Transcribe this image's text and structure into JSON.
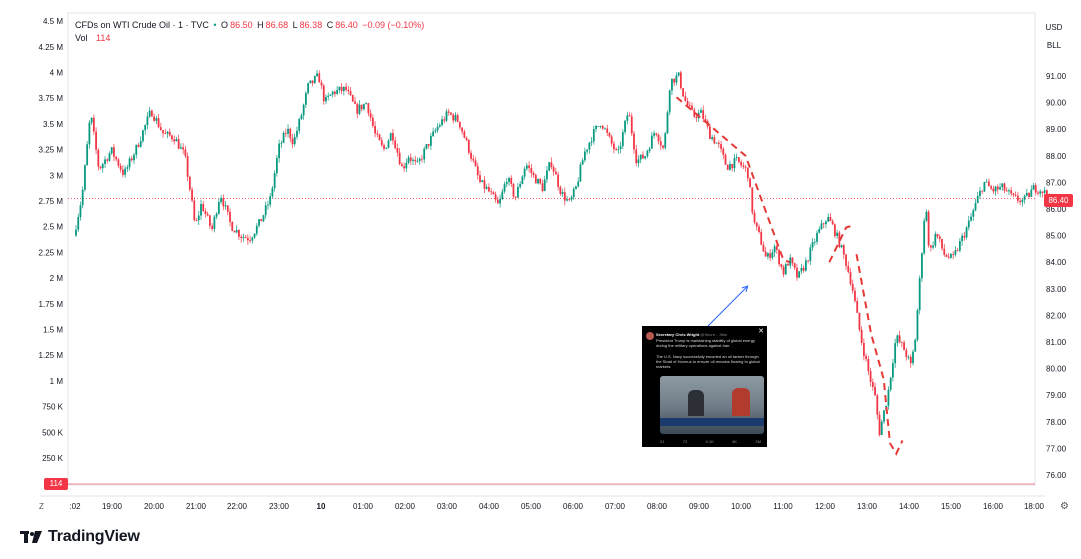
{
  "legend": {
    "symbol": "CFDs on WTI Crude Oil · 1 · TVC",
    "open_label": "O",
    "open": "86.50",
    "high_label": "H",
    "high": "86.68",
    "low_label": "L",
    "low": "86.38",
    "close_label": "C",
    "close": "86.40",
    "change": "−0.09 (−0.10%)",
    "vol_label": "Vol",
    "vol_value": "114"
  },
  "currency": "USD",
  "unit": "BLL",
  "last_price_badge": "86.40",
  "volume_badge": "114",
  "reset_label": "Z",
  "brand": "TradingView",
  "colors": {
    "up": "#089981",
    "down": "#f23645",
    "annotation": "#e53935",
    "arrow": "#2962ff"
  },
  "icons": {
    "settings": "gear-icon",
    "logo": "tradingview-logo-icon",
    "close": "close-icon"
  },
  "tweet": {
    "author": "Secretary Chris Wright",
    "handle": "@Secre... 36m",
    "text_1": "President Trump is maintaining stability of global energy during the military operations against Iran.",
    "text_2": "The U.S. Navy successfully escorted an oil tanker through the Strait of Hormuz to ensure oil remains flowing to global markets.",
    "stats": [
      "21",
      "72",
      "0.1K",
      "4K",
      "2M"
    ]
  },
  "chart_data": {
    "type": "candlestick",
    "title": "CFDs on WTI Crude Oil · 1 · TVC",
    "xlabel": "",
    "ylabel": "",
    "y_unit": "USD",
    "ylim": [
      75.8,
      91.9
    ],
    "y_ticks": [
      "76.00",
      "77.00",
      "78.00",
      "79.00",
      "80.00",
      "81.00",
      "82.00",
      "83.00",
      "84.00",
      "85.00",
      "86.00",
      "87.00",
      "88.00",
      "89.00",
      "90.00",
      "91.00"
    ],
    "volume_ticks": [
      "250 K",
      "500 K",
      "750 K",
      "1 M",
      "1.25 M",
      "1.5 M",
      "1.75 M",
      "2 M",
      "2.25 M",
      "2.5 M",
      "2.75 M",
      "3 M",
      "3.25 M",
      "3.5 M",
      "3.75 M",
      "4 M",
      "4.25 M",
      "4.5 M"
    ],
    "x_ticks": [
      ":02",
      "19:00",
      "20:00",
      "21:00",
      "22:00",
      "23:00",
      "10",
      "01:00",
      "02:00",
      "03:00",
      "04:00",
      "05:00",
      "06:00",
      "07:00",
      "08:00",
      "09:00",
      "10:00",
      "11:00",
      "12:00",
      "13:00",
      "14:00",
      "15:00",
      "16:00",
      "18:00"
    ],
    "last_price": 86.4,
    "price_path": [
      [
        18.0,
        85.0
      ],
      [
        18.2,
        86.5
      ],
      [
        18.4,
        89.6
      ],
      [
        18.6,
        87.5
      ],
      [
        18.9,
        88.2
      ],
      [
        19.2,
        87.3
      ],
      [
        19.5,
        88.3
      ],
      [
        19.85,
        89.7
      ],
      [
        20.15,
        88.8
      ],
      [
        20.4,
        88.7
      ],
      [
        20.65,
        88.0
      ],
      [
        20.8,
        86.5
      ],
      [
        20.9,
        85.3
      ],
      [
        21.05,
        86.2
      ],
      [
        21.3,
        85.2
      ],
      [
        21.5,
        86.6
      ],
      [
        21.75,
        85.4
      ],
      [
        22.0,
        85.0
      ],
      [
        22.2,
        84.9
      ],
      [
        22.45,
        85.5
      ],
      [
        22.7,
        86.4
      ],
      [
        22.9,
        88.3
      ],
      [
        23.1,
        89.0
      ],
      [
        23.25,
        88.5
      ],
      [
        23.45,
        89.6
      ],
      [
        23.6,
        90.6
      ],
      [
        23.85,
        91.0
      ],
      [
        24.0,
        90.0
      ],
      [
        24.2,
        90.4
      ],
      [
        24.5,
        90.5
      ],
      [
        24.75,
        89.7
      ],
      [
        25.0,
        90.0
      ],
      [
        25.2,
        88.8
      ],
      [
        25.4,
        88.2
      ],
      [
        25.6,
        88.9
      ],
      [
        25.85,
        87.5
      ],
      [
        26.0,
        88.0
      ],
      [
        26.2,
        87.6
      ],
      [
        26.45,
        88.4
      ],
      [
        26.7,
        89.1
      ],
      [
        26.95,
        89.6
      ],
      [
        27.2,
        89.3
      ],
      [
        27.45,
        88.2
      ],
      [
        27.7,
        87.0
      ],
      [
        27.9,
        86.7
      ],
      [
        28.15,
        86.1
      ],
      [
        28.35,
        87.2
      ],
      [
        28.55,
        86.4
      ],
      [
        28.8,
        87.7
      ],
      [
        29.0,
        87.2
      ],
      [
        29.2,
        86.8
      ],
      [
        29.4,
        87.8
      ],
      [
        29.65,
        86.6
      ],
      [
        29.85,
        86.2
      ],
      [
        30.0,
        86.8
      ],
      [
        30.2,
        88.1
      ],
      [
        30.4,
        88.8
      ],
      [
        30.6,
        89.3
      ],
      [
        30.8,
        88.6
      ],
      [
        31.0,
        88.0
      ],
      [
        31.25,
        89.7
      ],
      [
        31.45,
        87.8
      ],
      [
        31.65,
        88.0
      ],
      [
        31.9,
        89.0
      ],
      [
        32.1,
        88.2
      ],
      [
        32.25,
        90.8
      ],
      [
        32.45,
        91.0
      ],
      [
        32.6,
        90.1
      ],
      [
        32.8,
        89.5
      ],
      [
        33.0,
        89.6
      ],
      [
        33.2,
        88.8
      ],
      [
        33.4,
        88.4
      ],
      [
        33.6,
        87.6
      ],
      [
        33.85,
        87.8
      ],
      [
        34.1,
        87.4
      ],
      [
        34.25,
        85.5
      ],
      [
        34.4,
        84.9
      ],
      [
        34.55,
        84.1
      ],
      [
        34.75,
        84.6
      ],
      [
        34.95,
        83.6
      ],
      [
        35.1,
        84.1
      ],
      [
        35.3,
        83.4
      ],
      [
        35.5,
        84.0
      ],
      [
        35.75,
        85.0
      ],
      [
        36.0,
        85.7
      ],
      [
        36.15,
        85.3
      ],
      [
        36.3,
        84.7
      ],
      [
        36.45,
        84.0
      ],
      [
        36.6,
        83.1
      ],
      [
        36.8,
        81.2
      ],
      [
        37.0,
        79.8
      ],
      [
        37.15,
        78.9
      ],
      [
        37.25,
        77.6
      ],
      [
        37.45,
        79.0
      ],
      [
        37.65,
        81.2
      ],
      [
        37.85,
        80.7
      ],
      [
        38.0,
        80.1
      ],
      [
        38.1,
        81.0
      ],
      [
        38.2,
        83.0
      ],
      [
        38.35,
        86.3
      ],
      [
        38.45,
        84.3
      ],
      [
        38.6,
        85.1
      ],
      [
        38.8,
        84.3
      ],
      [
        39.0,
        84.1
      ],
      [
        39.2,
        84.8
      ],
      [
        39.4,
        85.5
      ],
      [
        39.6,
        86.4
      ],
      [
        39.75,
        87.0
      ],
      [
        39.95,
        86.7
      ],
      [
        40.2,
        86.8
      ],
      [
        40.45,
        86.4
      ],
      [
        40.7,
        86.3
      ],
      [
        40.95,
        86.8
      ],
      [
        41.15,
        86.7
      ],
      [
        41.3,
        86.4
      ]
    ],
    "annotations": [
      {
        "type": "dashed_line",
        "label": "",
        "points": [
          [
            32.35,
            90.2
          ],
          [
            34.0,
            88.0
          ],
          [
            34.9,
            84.1
          ],
          [
            35.05,
            84.0
          ]
        ]
      },
      {
        "type": "dashed_line",
        "label": "",
        "points": [
          [
            36.0,
            84.0
          ],
          [
            36.4,
            85.3
          ],
          [
            36.6,
            85.4
          ]
        ]
      },
      {
        "type": "dashed_line",
        "label": "",
        "points": [
          [
            36.65,
            84.3
          ],
          [
            37.0,
            81.3
          ],
          [
            37.3,
            79.6
          ],
          [
            37.45,
            77.2
          ],
          [
            37.6,
            76.8
          ],
          [
            37.75,
            77.3
          ]
        ]
      },
      {
        "type": "arrow",
        "label": "",
        "from": [
          33.1,
          81.6
        ],
        "to": [
          34.05,
          83.1
        ]
      }
    ]
  }
}
